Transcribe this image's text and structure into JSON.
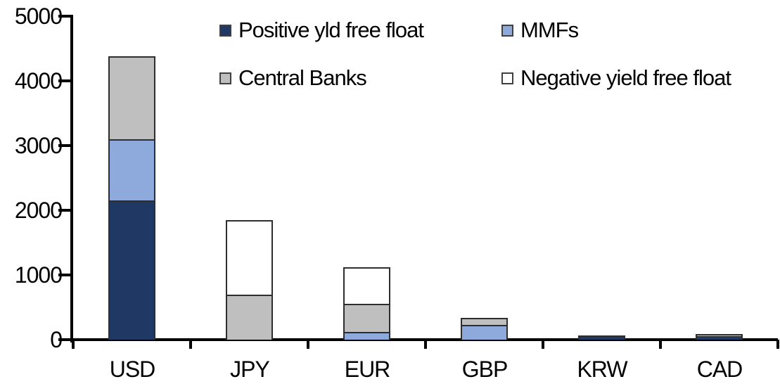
{
  "chart_data": {
    "type": "bar",
    "stacked": true,
    "title": "",
    "xlabel": "",
    "ylabel": "",
    "categories": [
      "USD",
      "JPY",
      "EUR",
      "GBP",
      "KRW",
      "CAD"
    ],
    "series": [
      {
        "name": "Positive yld free float",
        "color": "#1F3864",
        "values": [
          2150,
          0,
          0,
          0,
          60,
          60
        ]
      },
      {
        "name": "MMFs",
        "color": "#8EA9DB",
        "values": [
          950,
          0,
          120,
          230,
          0,
          0
        ]
      },
      {
        "name": "Central Banks",
        "color": "#BFBFBF",
        "values": [
          1280,
          700,
          430,
          110,
          0,
          30
        ]
      },
      {
        "name": "Negative yield free float",
        "color": "#FFFFFF",
        "values": [
          0,
          1150,
          570,
          0,
          0,
          0
        ]
      }
    ],
    "totals": [
      4380,
      1850,
      1120,
      340,
      60,
      90
    ],
    "ylim": [
      0,
      5000
    ],
    "ytick_labels": [
      "0",
      "1000",
      "2000",
      "3000",
      "4000",
      "5000"
    ],
    "grid": false,
    "legend_position": "top",
    "legend_rows": [
      [
        "Positive yld free float",
        "MMFs"
      ],
      [
        "Central Banks",
        "Negative yield free float"
      ]
    ],
    "colors": {
      "axis": "#000000",
      "text": "#000000",
      "bar_border": "#2e2e2e",
      "background": "#ffffff"
    }
  }
}
